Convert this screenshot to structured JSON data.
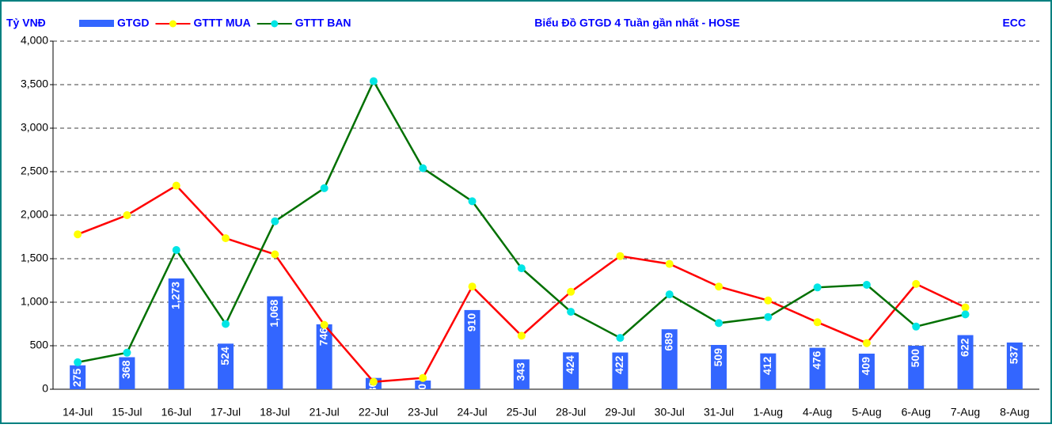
{
  "chart_data": {
    "type": "bar-line",
    "title": "Biểu Đồ GTGD 4 Tuần gần nhất - HOSE",
    "y_label": "Tỷ VNĐ",
    "source": "ECC",
    "categories": [
      "14-Jul",
      "15-Jul",
      "16-Jul",
      "17-Jul",
      "18-Jul",
      "21-Jul",
      "22-Jul",
      "23-Jul",
      "24-Jul",
      "25-Jul",
      "28-Jul",
      "29-Jul",
      "30-Jul",
      "31-Jul",
      "1-Aug",
      "4-Aug",
      "5-Aug",
      "6-Aug",
      "7-Aug",
      "8-Aug"
    ],
    "series": [
      {
        "name": "GTGD",
        "kind": "bar",
        "color": "#3366ff",
        "values": [
          275,
          368,
          1273,
          524,
          1068,
          746,
          130,
          100,
          910,
          343,
          424,
          422,
          689,
          509,
          412,
          476,
          409,
          500,
          622,
          537
        ],
        "value_labels": [
          "275",
          "368",
          "1,273",
          "524",
          "1,068",
          "746",
          "130",
          "100",
          "910",
          "343",
          "424",
          "422",
          "689",
          "509",
          "412",
          "476",
          "409",
          "500",
          "622",
          "537"
        ]
      },
      {
        "name": "GTTT MUA",
        "kind": "line",
        "color": "#ff0000",
        "marker_color": "#ffff00",
        "values": [
          1780,
          2000,
          2340,
          1735,
          1550,
          740,
          85,
          130,
          1180,
          615,
          1120,
          1530,
          1440,
          1180,
          1020,
          770,
          530,
          1210,
          940,
          null
        ]
      },
      {
        "name": "GTTT BAN",
        "kind": "line",
        "color": "#007000",
        "marker_color": "#00e5e5",
        "values": [
          310,
          420,
          1600,
          750,
          1930,
          2310,
          3540,
          2540,
          2160,
          1390,
          890,
          590,
          1090,
          760,
          830,
          1170,
          1200,
          720,
          860,
          null
        ]
      }
    ],
    "ylim": [
      0,
      4000
    ],
    "yticks": [
      0,
      {
        "value": 500,
        "label": "500"
      },
      {
        "value": 1000,
        "label": "1,000"
      },
      {
        "value": 1500,
        "label": "1,500"
      },
      {
        "value": 2000,
        "label": "2,000"
      },
      {
        "value": 2500,
        "label": "2,500"
      },
      {
        "value": 3000,
        "label": "3,000"
      },
      {
        "value": 3500,
        "label": "3,500"
      },
      {
        "value": 4000,
        "label": "4,000"
      }
    ],
    "grid": true
  }
}
